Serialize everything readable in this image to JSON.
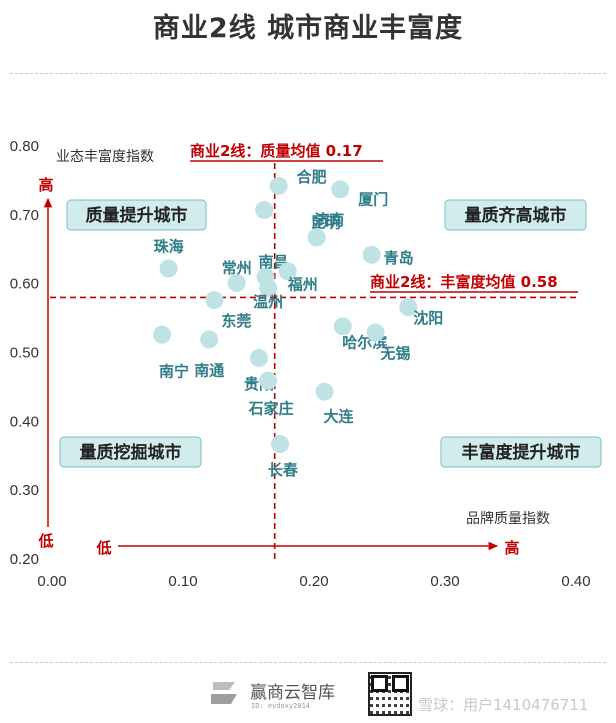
{
  "page": {
    "title": "商业2线  城市商业丰富度"
  },
  "chart_data": {
    "type": "scatter",
    "title": "商业2线  城市商业丰富度",
    "xlabel": "品牌质量指数",
    "ylabel": "业态丰富度指数",
    "xlim": [
      0,
      0.4
    ],
    "ylim": [
      0.2,
      0.8
    ],
    "x_ticks": [
      "0.00",
      "0.10",
      "0.20",
      "0.30",
      "0.40"
    ],
    "y_ticks": [
      "0.20",
      "0.30",
      "0.40",
      "0.50",
      "0.60",
      "0.70",
      "0.80"
    ],
    "grid": false,
    "x_low_label": "低",
    "x_high_label": "高",
    "y_low_label": "低",
    "y_high_label": "高",
    "ref_lines": [
      {
        "axis": "x",
        "value": 0.17,
        "label": "商业2线：质量均值 0.17"
      },
      {
        "axis": "y",
        "value": 0.58,
        "label": "商业2线：丰富度均值 0.58"
      }
    ],
    "quadrants": {
      "top_left": "质量提升城市",
      "top_right": "量质齐高城市",
      "bottom_left": "量质挖掘城市",
      "bottom_right": "丰富度提升城市"
    },
    "points": [
      {
        "name": "合肥",
        "x": 0.173,
        "y": 0.742
      },
      {
        "name": "厦门",
        "x": 0.22,
        "y": 0.737
      },
      {
        "name": "济南",
        "x": 0.162,
        "y": 0.707
      },
      {
        "name": "昆明",
        "x": 0.202,
        "y": 0.667
      },
      {
        "name": "青岛",
        "x": 0.244,
        "y": 0.642
      },
      {
        "name": "珠海",
        "x": 0.089,
        "y": 0.622
      },
      {
        "name": "常州",
        "x": 0.141,
        "y": 0.601
      },
      {
        "name": "南昌",
        "x": 0.163,
        "y": 0.61
      },
      {
        "name": "福州",
        "x": 0.18,
        "y": 0.618
      },
      {
        "name": "温州",
        "x": 0.165,
        "y": 0.594
      },
      {
        "name": "东莞",
        "x": 0.124,
        "y": 0.576
      },
      {
        "name": "沈阳",
        "x": 0.272,
        "y": 0.566
      },
      {
        "name": "哈尔滨",
        "x": 0.222,
        "y": 0.538
      },
      {
        "name": "无锡",
        "x": 0.247,
        "y": 0.529
      },
      {
        "name": "南宁",
        "x": 0.084,
        "y": 0.526
      },
      {
        "name": "南通",
        "x": 0.12,
        "y": 0.519
      },
      {
        "name": "贵阳",
        "x": 0.158,
        "y": 0.492
      },
      {
        "name": "石家庄",
        "x": 0.165,
        "y": 0.459
      },
      {
        "name": "大连",
        "x": 0.208,
        "y": 0.443
      },
      {
        "name": "长春",
        "x": 0.174,
        "y": 0.367
      }
    ],
    "colors": {
      "point": "#bfe2e5",
      "point_label": "#2f7d89",
      "ref_line": "#c00000",
      "quadrant_fill": "#d2ecee",
      "quadrant_border": "#8fc6cc",
      "axis_arrow": "#c00000"
    }
  },
  "footer": {
    "brand": "赢商云智库",
    "id_text": "ID: evdoxy2014",
    "watermark": "雪球：用户1410476711"
  }
}
